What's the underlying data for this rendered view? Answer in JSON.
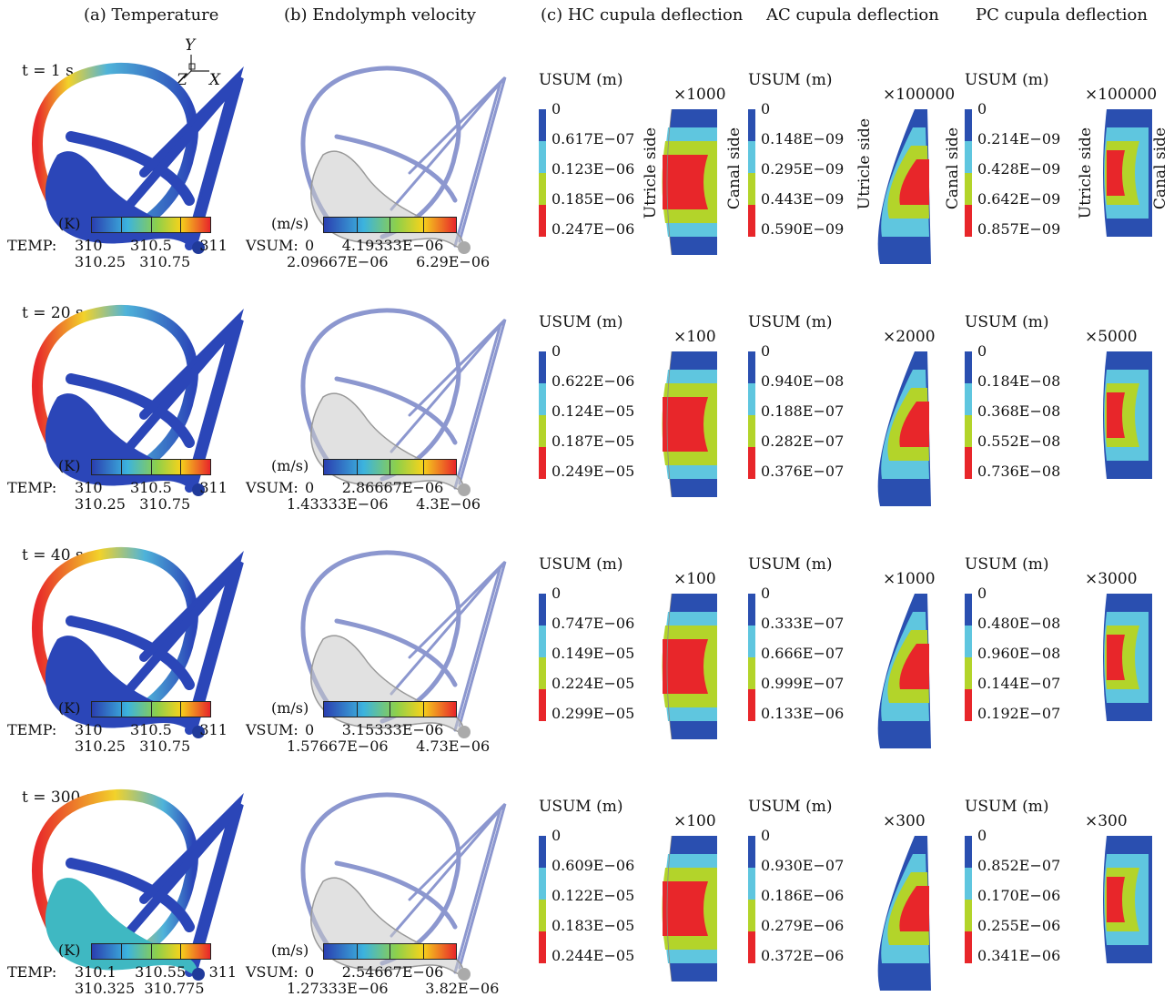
{
  "headers": {
    "temperature": "(a) Temperature",
    "velocity": "(b) Endolymph velocity",
    "hc": "(c) HC cupula deflection",
    "ac": "AC cupula deflection",
    "pc": "PC cupula deflection"
  },
  "axes": {
    "y": "Y",
    "z": "Z",
    "x": "X"
  },
  "side_labels": {
    "utricle": "Utricle side",
    "canal": "Canal side"
  },
  "colors": {
    "blue": "#2a4fb0",
    "cyan": "#5fc6df",
    "lime": "#b3d42a",
    "red": "#e8262a"
  },
  "rows": [
    {
      "time": "t = 1 s",
      "temp_unit": "(K)",
      "temp_prefix": "TEMP:",
      "temp_top": "310      310.5      311",
      "temp_bottom": "310.25   310.75",
      "vel_unit": "(m/s)",
      "vel_prefix": "VSUM:",
      "vel_top": "0      4.19333E−06",
      "vel_bottom": "2.09667E−06      6.29E−06",
      "hc": {
        "usum": "USUM (m)",
        "mag": "×1000",
        "ticks": [
          "0",
          "0.617E−07",
          "0.123E−06",
          "0.185E−06",
          "0.247E−06"
        ]
      },
      "ac": {
        "usum": "USUM (m)",
        "mag": "×100000",
        "ticks": [
          "0",
          "0.148E−09",
          "0.295E−09",
          "0.443E−09",
          "0.590E−09"
        ]
      },
      "pc": {
        "usum": "USUM (m)",
        "mag": "×100000",
        "ticks": [
          "0",
          "0.214E−09",
          "0.428E−09",
          "0.642E−09",
          "0.857E−09"
        ]
      }
    },
    {
      "time": "t = 20 s",
      "temp_unit": "(K)",
      "temp_prefix": "TEMP:",
      "temp_top": "310      310.5      311",
      "temp_bottom": "310.25   310.75",
      "vel_unit": "(m/s)",
      "vel_prefix": "VSUM:",
      "vel_top": "0      2.86667E−06",
      "vel_bottom": "1.43333E−06      4.3E−06",
      "hc": {
        "usum": "USUM (m)",
        "mag": "×100",
        "ticks": [
          "0",
          "0.622E−06",
          "0.124E−05",
          "0.187E−05",
          "0.249E−05"
        ]
      },
      "ac": {
        "usum": "USUM (m)",
        "mag": "×2000",
        "ticks": [
          "0",
          "0.940E−08",
          "0.188E−07",
          "0.282E−07",
          "0.376E−07"
        ]
      },
      "pc": {
        "usum": "USUM (m)",
        "mag": "×5000",
        "ticks": [
          "0",
          "0.184E−08",
          "0.368E−08",
          "0.552E−08",
          "0.736E−08"
        ]
      }
    },
    {
      "time": "t = 40 s",
      "temp_unit": "(K)",
      "temp_prefix": "TEMP:",
      "temp_top": "310      310.5      311",
      "temp_bottom": "310.25   310.75",
      "vel_unit": "(m/s)",
      "vel_prefix": "VSUM:",
      "vel_top": "0      3.15333E−06",
      "vel_bottom": "1.57667E−06      4.73E−06",
      "hc": {
        "usum": "USUM (m)",
        "mag": "×100",
        "ticks": [
          "0",
          "0.747E−06",
          "0.149E−05",
          "0.224E−05",
          "0.299E−05"
        ]
      },
      "ac": {
        "usum": "USUM (m)",
        "mag": "×1000",
        "ticks": [
          "0",
          "0.333E−07",
          "0.666E−07",
          "0.999E−07",
          "0.133E−06"
        ]
      },
      "pc": {
        "usum": "USUM (m)",
        "mag": "×3000",
        "ticks": [
          "0",
          "0.480E−08",
          "0.960E−08",
          "0.144E−07",
          "0.192E−07"
        ]
      }
    },
    {
      "time": "t = 300 s",
      "temp_unit": "(K)",
      "temp_prefix": "TEMP:",
      "temp_top": "310.1    310.55     311",
      "temp_bottom": "310.325  310.775",
      "vel_unit": "(m/s)",
      "vel_prefix": "VSUM:",
      "vel_top": "0      2.54667E−06",
      "vel_bottom": "1.27333E−06        3.82E−06",
      "hc": {
        "usum": "USUM (m)",
        "mag": "×100",
        "ticks": [
          "0",
          "0.609E−06",
          "0.122E−05",
          "0.183E−05",
          "0.244E−05"
        ]
      },
      "ac": {
        "usum": "USUM (m)",
        "mag": "×300",
        "ticks": [
          "0",
          "0.930E−07",
          "0.186E−06",
          "0.279E−06",
          "0.372E−06"
        ]
      },
      "pc": {
        "usum": "USUM (m)",
        "mag": "×300",
        "ticks": [
          "0",
          "0.852E−07",
          "0.170E−06",
          "0.255E−06",
          "0.341E−06"
        ]
      }
    }
  ]
}
